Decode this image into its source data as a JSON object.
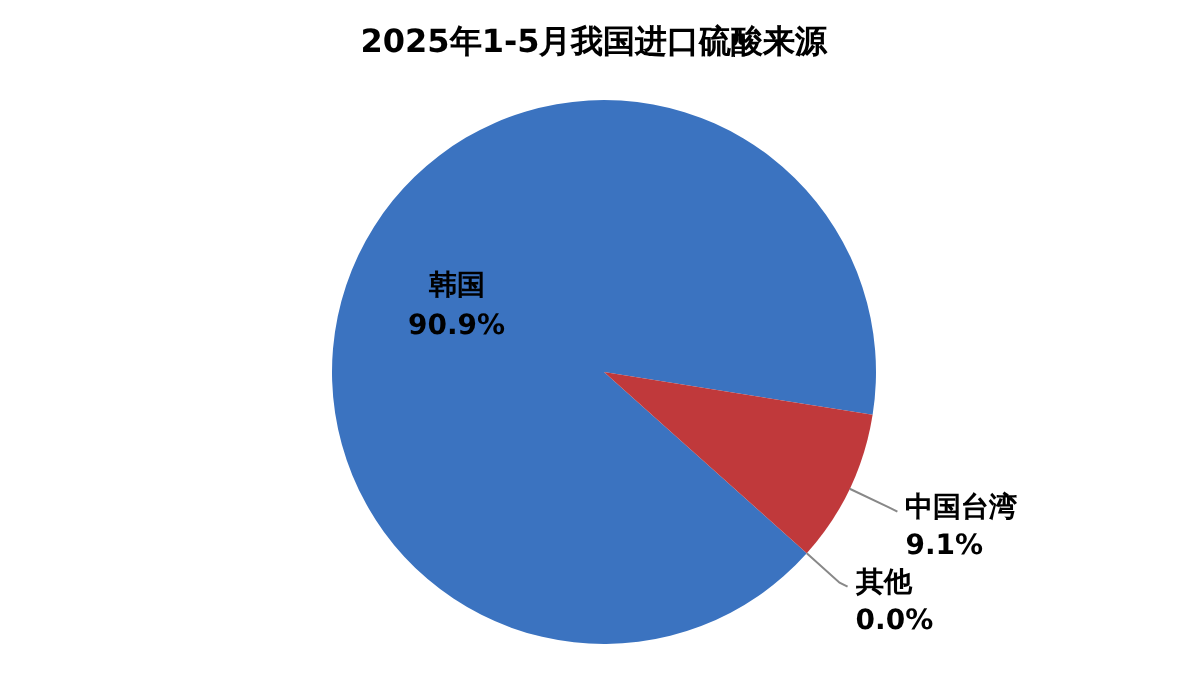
{
  "chart_data": {
    "type": "pie",
    "title": "2025年1-5月我国进口硫酸来源",
    "categories": [
      "韩国",
      "中国台湾",
      "其他"
    ],
    "values": [
      90.9,
      9.1,
      0.0
    ],
    "colors": [
      "#3b73c0",
      "#c0393b",
      "#9bbb59"
    ],
    "value_labels": [
      "90.9%",
      "9.1%",
      "0.0%"
    ]
  }
}
